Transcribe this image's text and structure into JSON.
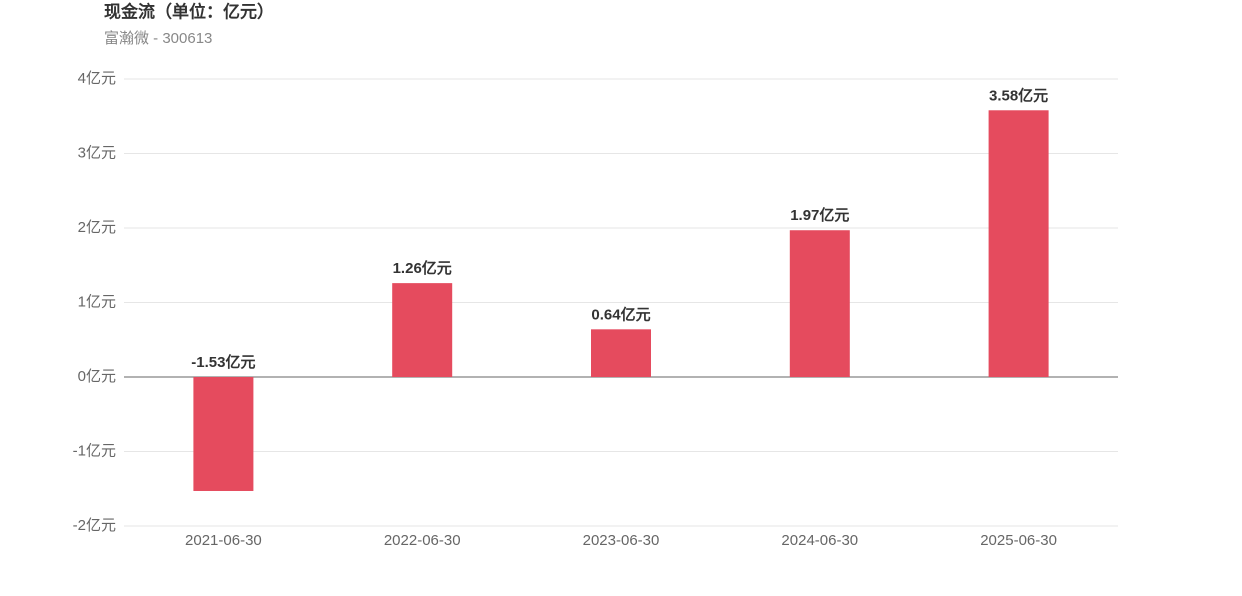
{
  "chart_data": {
    "type": "bar",
    "title": "现金流（单位：亿元）",
    "subtitle": "富瀚微 - 300613",
    "categories": [
      "2021-06-30",
      "2022-06-30",
      "2023-06-30",
      "2024-06-30",
      "2025-06-30"
    ],
    "values": [
      -1.53,
      1.26,
      0.64,
      1.97,
      3.58
    ],
    "value_labels": [
      "-1.53亿元",
      "1.26亿元",
      "0.64亿元",
      "1.97亿元",
      "3.58亿元"
    ],
    "color": "#e54b5e",
    "ylim": [
      -2,
      4
    ],
    "yticks": [
      {
        "value": -2,
        "label": "-2亿元"
      },
      {
        "value": -1,
        "label": "-1亿元"
      },
      {
        "value": 0,
        "label": "0亿元"
      },
      {
        "value": 1,
        "label": "1亿元"
      },
      {
        "value": 2,
        "label": "2亿元"
      },
      {
        "value": 3,
        "label": "3亿元"
      },
      {
        "value": 4,
        "label": "4亿元"
      }
    ],
    "grid": true
  }
}
